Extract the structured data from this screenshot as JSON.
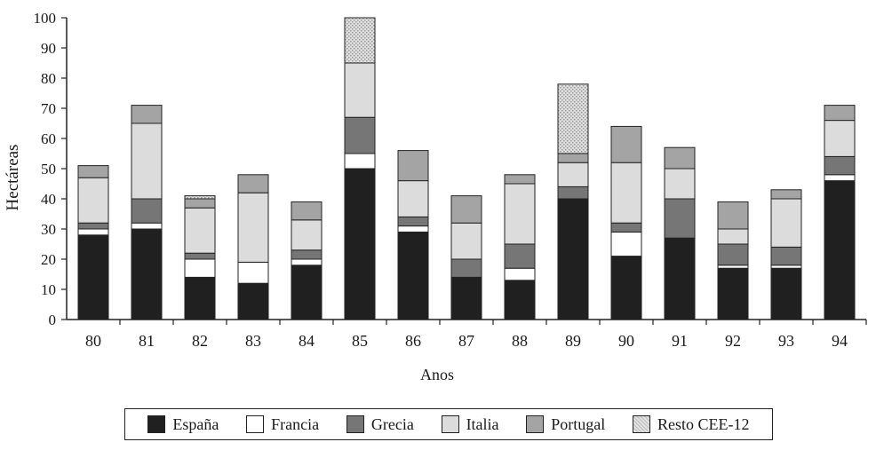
{
  "chart_data": {
    "type": "bar",
    "stacked": true,
    "categories": [
      "80",
      "81",
      "82",
      "83",
      "84",
      "85",
      "86",
      "87",
      "88",
      "89",
      "90",
      "91",
      "92",
      "93",
      "94"
    ],
    "series": [
      {
        "name": "España",
        "color": "#202020",
        "values": [
          28,
          30,
          14,
          12,
          18,
          50,
          29,
          14,
          13,
          40,
          21,
          27,
          17,
          17,
          46
        ]
      },
      {
        "name": "Francia",
        "color": "#ffffff",
        "values": [
          2,
          2,
          6,
          7,
          2,
          5,
          2,
          0,
          4,
          0,
          8,
          0,
          1,
          1,
          2
        ]
      },
      {
        "name": "Grecia",
        "color": "#767676",
        "values": [
          2,
          8,
          2,
          0,
          3,
          12,
          3,
          6,
          8,
          4,
          3,
          13,
          7,
          6,
          6
        ]
      },
      {
        "name": "Italia",
        "color": "#dcdcdc",
        "values": [
          15,
          25,
          15,
          23,
          10,
          18,
          12,
          12,
          20,
          8,
          20,
          10,
          5,
          16,
          12
        ]
      },
      {
        "name": "Portugal",
        "color": "#a4a4a4",
        "values": [
          4,
          6,
          3,
          6,
          6,
          0,
          10,
          9,
          3,
          3,
          12,
          7,
          9,
          3,
          5
        ]
      },
      {
        "name": "Resto CEE-12",
        "color": "#cbcbcb",
        "values": [
          0,
          0,
          1,
          0,
          0,
          15,
          0,
          0,
          0,
          23,
          0,
          0,
          0,
          0,
          0
        ]
      }
    ],
    "xlabel": "Anos",
    "ylabel": "Hectáreas",
    "ylim": [
      0,
      100
    ],
    "yticks": [
      0,
      10,
      20,
      30,
      40,
      50,
      60,
      70,
      80,
      90,
      100
    ],
    "grid": false,
    "legend_position": "bottom"
  }
}
